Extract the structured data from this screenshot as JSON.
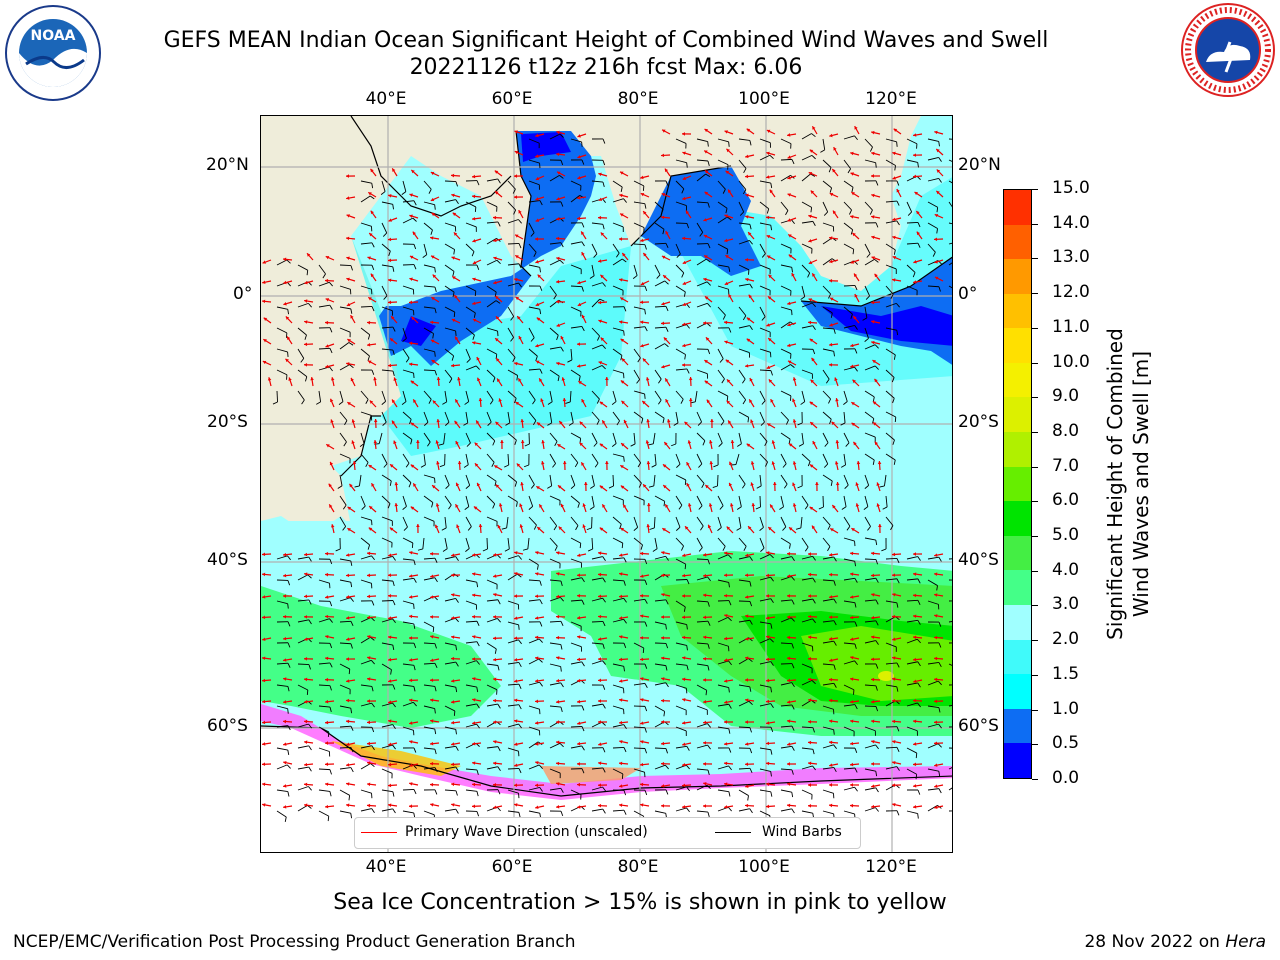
{
  "header": {
    "title_line1": "GEFS MEAN Indian Ocean Significant Height of Combined Wind Waves and Swell",
    "title_line2": "20221126 t12z 216h fcst   Max: 6.06"
  },
  "logos": {
    "noaa": {
      "text": "NOAA",
      "ring_text": "NATIONAL OCEANIC AND ATMOSPHERIC ADMINISTRATION · U.S. DEPARTMENT OF COMMERCE"
    },
    "nws": {
      "ring_text": "NATIONAL WEATHER SERVICE"
    }
  },
  "axes": {
    "lon_top": [
      "40°E",
      "60°E",
      "80°E",
      "100°E",
      "120°E"
    ],
    "lon_bottom": [
      "40°E",
      "60°E",
      "80°E",
      "100°E",
      "120°E"
    ],
    "lat_left": [
      "20°N",
      "0°",
      "20°S",
      "40°S",
      "60°S"
    ],
    "lat_right": [
      "20°N",
      "0°",
      "20°S",
      "40°S",
      "60°S"
    ]
  },
  "colorbar": {
    "title_line1": "Significant Height of Combined",
    "title_line2": "Wind Waves and Swell [m]",
    "ticks": [
      "0.0",
      "0.5",
      "1.0",
      "1.5",
      "2.0",
      "3.0",
      "4.0",
      "5.0",
      "6.0",
      "7.0",
      "8.0",
      "9.0",
      "10.0",
      "11.0",
      "12.0",
      "13.0",
      "14.0",
      "15.0"
    ],
    "colors": [
      "#0000ff",
      "#0d6df3",
      "#00ffff",
      "#40fafa",
      "#a0ffff",
      "#44ff88",
      "#44ee44",
      "#00e400",
      "#66ee00",
      "#b0f000",
      "#dcf000",
      "#f4f000",
      "#ffe000",
      "#ffc000",
      "#ff9900",
      "#ff6000",
      "#ff3000",
      "#ff0000"
    ]
  },
  "legend": {
    "wave_dir": "Primary Wave Direction (unscaled)",
    "wind_barbs": "Wind Barbs",
    "wave_dir_color": "#ff0000",
    "wind_barbs_color": "#000000"
  },
  "footer": {
    "ice_note": "Sea Ice Concentration > 15% is shown in pink to yellow",
    "producer": "NCEP/EMC/Verification Post Processing Product Generation Branch",
    "date_prefix": "28 Nov 2022 on ",
    "machine": "Hera"
  }
}
